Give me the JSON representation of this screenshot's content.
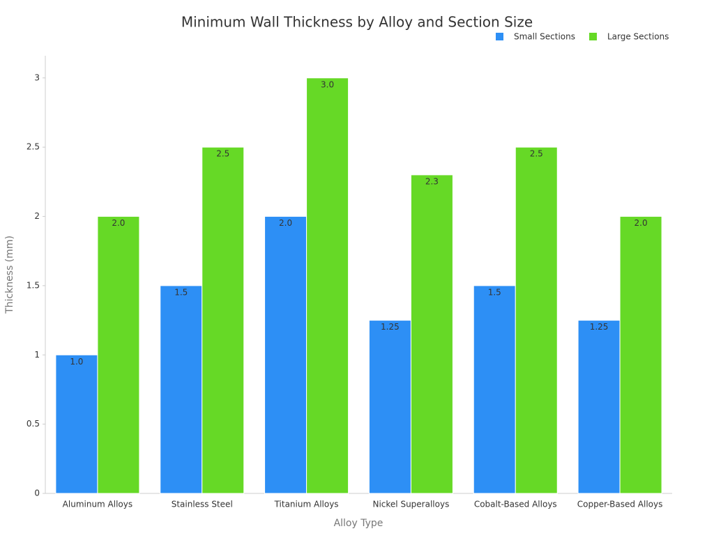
{
  "chart_data": {
    "type": "bar",
    "title": "Minimum Wall Thickness by Alloy and Section Size",
    "x_label": "Alloy Type",
    "y_label": "Thickness (mm)",
    "categories": [
      "Aluminum Alloys",
      "Stainless Steel",
      "Titanium Alloys",
      "Nickel Superalloys",
      "Cobalt-Based Alloys",
      "Copper-Based Alloys"
    ],
    "series": [
      {
        "name": "Small Sections",
        "color": "#2d8ff5",
        "values": [
          1,
          1.5,
          2,
          1.25,
          1.5,
          1.25
        ],
        "value_labels": [
          "1.0",
          "1.5",
          "2.0",
          "1.25",
          "1.5",
          "1.25"
        ]
      },
      {
        "name": "Large Sections",
        "color": "#66d926",
        "values": [
          2,
          2.5,
          3,
          2.3,
          2.5,
          2
        ],
        "value_labels": [
          "2.0",
          "2.5",
          "3.0",
          "2.3",
          "2.5",
          "2.0"
        ]
      }
    ],
    "ylim": [
      0,
      3.16
    ],
    "yticks": [
      0,
      0.5,
      1,
      1.5,
      2,
      2.5,
      3
    ],
    "grid": false,
    "legend": "top-right"
  }
}
